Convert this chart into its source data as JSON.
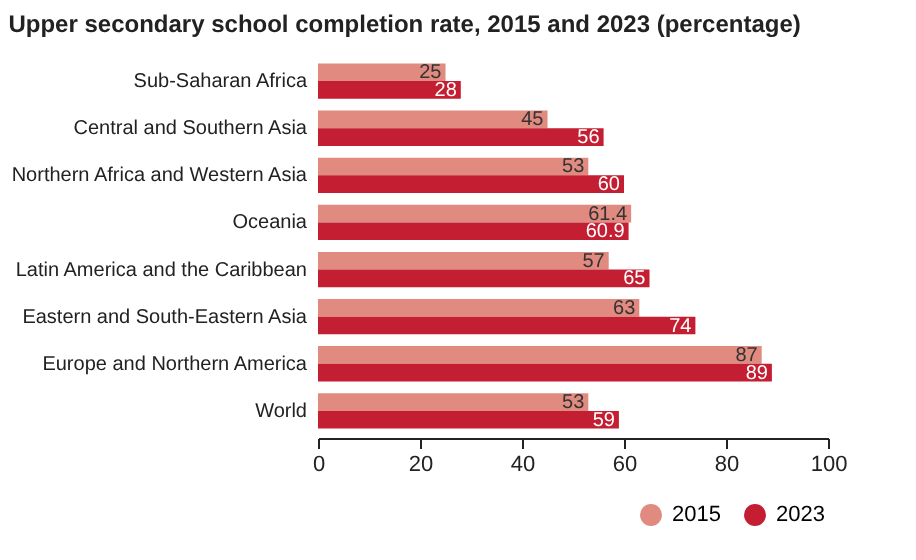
{
  "chart_data": {
    "type": "bar",
    "orientation": "horizontal",
    "title": "Upper secondary school completion rate, 2015 and 2023 (percentage)",
    "categories": [
      "Sub-Saharan Africa",
      "Central and Southern Asia",
      "Northern Africa and Western Asia",
      "Oceania",
      "Latin America and the Caribbean",
      "Eastern and South-Eastern Asia",
      "Europe and Northern America",
      "World"
    ],
    "series": [
      {
        "name": "2015",
        "color": "#e08a80",
        "values": [
          25,
          45,
          53,
          61.4,
          57,
          63,
          87,
          53
        ]
      },
      {
        "name": "2023",
        "color": "#c41e32",
        "values": [
          28,
          56,
          60,
          60.9,
          65,
          74,
          89,
          59
        ]
      }
    ],
    "xlim": [
      0,
      100
    ],
    "xticks": [
      0,
      20,
      40,
      60,
      80,
      100
    ],
    "data_labels": true,
    "grid": false,
    "legend": "bottom right"
  }
}
